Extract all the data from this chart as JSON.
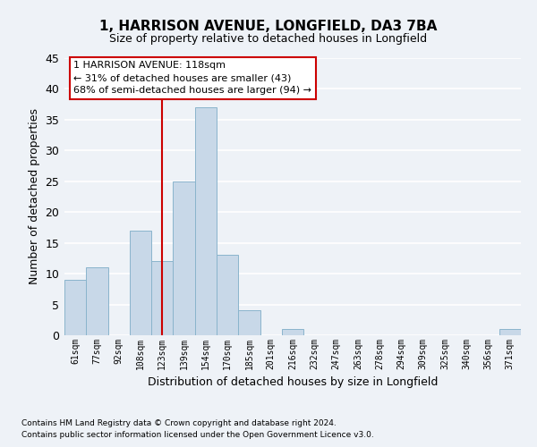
{
  "title": "1, HARRISON AVENUE, LONGFIELD, DA3 7BA",
  "subtitle": "Size of property relative to detached houses in Longfield",
  "xlabel": "Distribution of detached houses by size in Longfield",
  "ylabel": "Number of detached properties",
  "bin_labels": [
    "61sqm",
    "77sqm",
    "92sqm",
    "108sqm",
    "123sqm",
    "139sqm",
    "154sqm",
    "170sqm",
    "185sqm",
    "201sqm",
    "216sqm",
    "232sqm",
    "247sqm",
    "263sqm",
    "278sqm",
    "294sqm",
    "309sqm",
    "325sqm",
    "340sqm",
    "356sqm",
    "371sqm"
  ],
  "bar_heights": [
    9,
    11,
    0,
    17,
    12,
    25,
    37,
    13,
    4,
    0,
    1,
    0,
    0,
    0,
    0,
    0,
    0,
    0,
    0,
    0,
    1
  ],
  "bar_color": "#c8d8e8",
  "bar_edge_color": "#8ab4cc",
  "vline_index": 4,
  "vline_color": "#cc0000",
  "ylim": [
    0,
    45
  ],
  "yticks": [
    0,
    5,
    10,
    15,
    20,
    25,
    30,
    35,
    40,
    45
  ],
  "annotation_title": "1 HARRISON AVENUE: 118sqm",
  "annotation_line1": "← 31% of detached houses are smaller (43)",
  "annotation_line2": "68% of semi-detached houses are larger (94) →",
  "annotation_box_color": "#ffffff",
  "annotation_box_edge": "#cc0000",
  "footnote1": "Contains HM Land Registry data © Crown copyright and database right 2024.",
  "footnote2": "Contains public sector information licensed under the Open Government Licence v3.0.",
  "background_color": "#eef2f7",
  "grid_color": "#ffffff",
  "title_fontsize": 11,
  "subtitle_fontsize": 9,
  "tick_fontsize": 7,
  "label_fontsize": 9,
  "footnote_fontsize": 6.5
}
